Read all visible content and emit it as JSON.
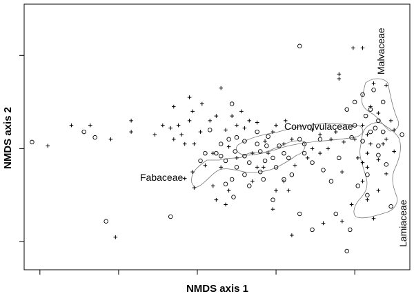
{
  "chart_data": {
    "type": "scatter",
    "xlabel": "NMDS axis 1",
    "ylabel": "NMDS axis 2",
    "xlim": [
      -1.1,
      1.35
    ],
    "ylim": [
      -1.3,
      1.55
    ],
    "x_ticks": [
      -1.0,
      -0.5,
      0.0,
      0.5,
      1.0
    ],
    "y_ticks": [
      -1.0,
      0.0,
      1.0
    ],
    "tick_labels_shown": false,
    "grid": false,
    "legend": "none",
    "groups": [
      {
        "label": "Fabaceae"
      },
      {
        "label": "Convolvulaceae"
      },
      {
        "label": "Malvaceae"
      },
      {
        "label": "Lamiaceae"
      }
    ],
    "series": [
      {
        "marker": "circle",
        "points": [
          [
            -1.05,
            0.07
          ],
          [
            -0.72,
            0.18
          ],
          [
            -0.65,
            0.12
          ],
          [
            -0.58,
            -0.78
          ],
          [
            -0.17,
            -0.73
          ],
          [
            0.22,
            0.48
          ],
          [
            0.08,
            0.2
          ],
          [
            0.25,
            0.12
          ],
          [
            0.38,
            0.18
          ],
          [
            0.45,
            0.13
          ],
          [
            0.2,
            0.1
          ],
          [
            0.02,
            -0.13
          ],
          [
            0.18,
            -0.13
          ],
          [
            0.3,
            -0.08
          ],
          [
            0.33,
            -0.15
          ],
          [
            0.48,
            -0.1
          ],
          [
            0.43,
            -0.13
          ],
          [
            0.55,
            -0.05
          ],
          [
            0.58,
            -0.1
          ],
          [
            0.12,
            -0.05
          ],
          [
            0.68,
            0.05
          ],
          [
            0.78,
            0.1
          ],
          [
            0.65,
            0.1
          ],
          [
            0.52,
            0.03
          ],
          [
            0.44,
            0.03
          ],
          [
            0.4,
            -0.03
          ],
          [
            0.38,
            0.05
          ],
          [
            0.3,
            0.08
          ],
          [
            0.24,
            -0.03
          ],
          [
            0.15,
            -0.08
          ],
          [
            0.25,
            -0.2
          ],
          [
            0.3,
            -0.28
          ],
          [
            0.4,
            -0.25
          ],
          [
            0.5,
            -0.2
          ],
          [
            0.6,
            -0.28
          ],
          [
            0.55,
            -0.33
          ],
          [
            0.22,
            -0.33
          ],
          [
            0.42,
            -0.33
          ],
          [
            0.33,
            -0.4
          ],
          [
            0.23,
            -0.52
          ],
          [
            0.18,
            -0.38
          ],
          [
            0.48,
            -0.55
          ],
          [
            0.73,
            -0.87
          ],
          [
            0.65,
            -0.7
          ],
          [
            0.88,
            -0.7
          ],
          [
            0.97,
            -0.87
          ],
          [
            1.05,
            0.58
          ],
          [
            1.12,
            0.63
          ],
          [
            1.18,
            0.5
          ],
          [
            1.1,
            0.42
          ],
          [
            1.07,
            0.35
          ],
          [
            1.15,
            0.3
          ],
          [
            1.13,
            0.22
          ],
          [
            1.18,
            0.18
          ],
          [
            1.1,
            0.18
          ],
          [
            1.05,
            0.08
          ],
          [
            1.15,
            0.03
          ],
          [
            1.15,
            -0.07
          ],
          [
            1.2,
            -0.17
          ],
          [
            1.08,
            -0.28
          ],
          [
            1.02,
            -0.4
          ],
          [
            1.08,
            -0.5
          ],
          [
            1.23,
            -0.62
          ],
          [
            1.3,
            0.15
          ],
          [
            0.95,
            0.42
          ],
          [
            1.0,
            0.5
          ],
          [
            1.0,
            0.25
          ],
          [
            0.98,
            0.12
          ],
          [
            0.9,
            -0.1
          ],
          [
            0.8,
            -0.23
          ],
          [
            0.73,
            -0.15
          ],
          [
            0.68,
            -0.05
          ],
          [
            0.85,
            -0.35
          ],
          [
            0.15,
            0.05
          ],
          [
            0.05,
            -0.05
          ],
          [
            0.65,
            1.1
          ],
          [
            0.95,
            -1.1
          ]
        ]
      },
      {
        "marker": "plus",
        "points": [
          [
            -0.95,
            0.03
          ],
          [
            -0.8,
            0.25
          ],
          [
            -0.68,
            0.25
          ],
          [
            -0.55,
            0.1
          ],
          [
            -0.52,
            -0.95
          ],
          [
            -0.42,
            0.18
          ],
          [
            -0.42,
            0.3
          ],
          [
            -0.27,
            0.15
          ],
          [
            -0.22,
            0.25
          ],
          [
            -0.17,
            0.22
          ],
          [
            -0.12,
            0.25
          ],
          [
            -0.1,
            0.15
          ],
          [
            -0.05,
            0.3
          ],
          [
            -0.03,
            0.4
          ],
          [
            0.03,
            0.48
          ],
          [
            -0.08,
            0.05
          ],
          [
            -0.02,
            0.05
          ],
          [
            0.02,
            0.18
          ],
          [
            0.08,
            0.3
          ],
          [
            0.15,
            0.65
          ],
          [
            0.12,
            0.35
          ],
          [
            0.18,
            0.2
          ],
          [
            0.22,
            0.35
          ],
          [
            0.28,
            0.4
          ],
          [
            0.33,
            0.3
          ],
          [
            0.3,
            0.22
          ],
          [
            0.25,
            0.25
          ],
          [
            0.38,
            0.28
          ],
          [
            0.48,
            0.18
          ],
          [
            0.56,
            0.3
          ],
          [
            0.5,
            0.25
          ],
          [
            0.6,
            0.1
          ],
          [
            0.73,
            0.2
          ],
          [
            0.78,
            0.15
          ],
          [
            0.85,
            0.1
          ],
          [
            0.88,
            0.18
          ],
          [
            0.93,
            0.07
          ],
          [
            0.83,
            0.0
          ],
          [
            0.73,
            0.0
          ],
          [
            0.55,
            0.05
          ],
          [
            0.43,
            0.08
          ],
          [
            0.45,
            -0.05
          ],
          [
            0.35,
            -0.05
          ],
          [
            0.25,
            -0.1
          ],
          [
            0.2,
            0.02
          ],
          [
            0.1,
            -0.05
          ],
          [
            0.05,
            -0.18
          ],
          [
            -0.03,
            -0.25
          ],
          [
            -0.08,
            -0.32
          ],
          [
            -0.02,
            -0.42
          ],
          [
            0.1,
            -0.4
          ],
          [
            0.2,
            -0.45
          ],
          [
            0.35,
            -0.35
          ],
          [
            0.42,
            -0.2
          ],
          [
            0.55,
            -0.35
          ],
          [
            0.62,
            -0.18
          ],
          [
            0.7,
            -0.1
          ],
          [
            0.78,
            -0.05
          ],
          [
            0.58,
            -0.45
          ],
          [
            0.5,
            -0.45
          ],
          [
            0.48,
            -0.65
          ],
          [
            0.6,
            -0.93
          ],
          [
            0.8,
            -0.8
          ],
          [
            0.92,
            -0.78
          ],
          [
            0.98,
            -0.6
          ],
          [
            0.18,
            -0.6
          ],
          [
            0.12,
            -0.55
          ],
          [
            -0.15,
            0.1
          ],
          [
            -0.05,
            0.55
          ],
          [
            -0.15,
            0.45
          ],
          [
            0.9,
            0.8
          ],
          [
            0.9,
            0.75
          ],
          [
            0.99,
            1.08
          ],
          [
            1.12,
            0.7
          ],
          [
            1.2,
            0.68
          ],
          [
            1.1,
            0.45
          ],
          [
            1.15,
            0.38
          ],
          [
            1.23,
            0.3
          ],
          [
            1.05,
            0.25
          ],
          [
            1.08,
            0.15
          ],
          [
            1.2,
            0.1
          ],
          [
            1.1,
            0.05
          ],
          [
            1.18,
            0.05
          ],
          [
            1.08,
            -0.05
          ],
          [
            1.25,
            -0.03
          ],
          [
            1.05,
            -0.15
          ],
          [
            1.15,
            -0.12
          ],
          [
            1.2,
            -0.27
          ],
          [
            1.05,
            -0.35
          ],
          [
            1.15,
            -0.45
          ],
          [
            1.08,
            -0.55
          ],
          [
            1.12,
            -0.75
          ],
          [
            1.08,
            -0.2
          ],
          [
            1.0,
            0.1
          ],
          [
            1.02,
            -0.1
          ],
          [
            0.92,
            -0.25
          ],
          [
            0.38,
            -0.2
          ],
          [
            0.15,
            -0.2
          ],
          [
            1.25,
            0.2
          ],
          [
            1.05,
            1.08
          ]
        ]
      }
    ]
  }
}
